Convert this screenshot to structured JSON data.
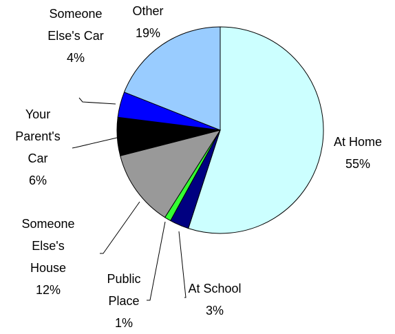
{
  "chart_data": {
    "type": "pie",
    "categories": [
      "At Home",
      "At School",
      "Public Place",
      "Someone Else's House",
      "Your Parent's Car",
      "Someone Else's Car",
      "Other"
    ],
    "values": [
      55,
      3,
      1,
      12,
      6,
      4,
      19
    ],
    "value_labels": [
      "55%",
      "3%",
      "1%",
      "12%",
      "6%",
      "4%",
      "19%"
    ],
    "colors": [
      "#ccffff",
      "#000080",
      "#33ff33",
      "#999999",
      "#000000",
      "#0000ff",
      "#99ccff"
    ]
  }
}
